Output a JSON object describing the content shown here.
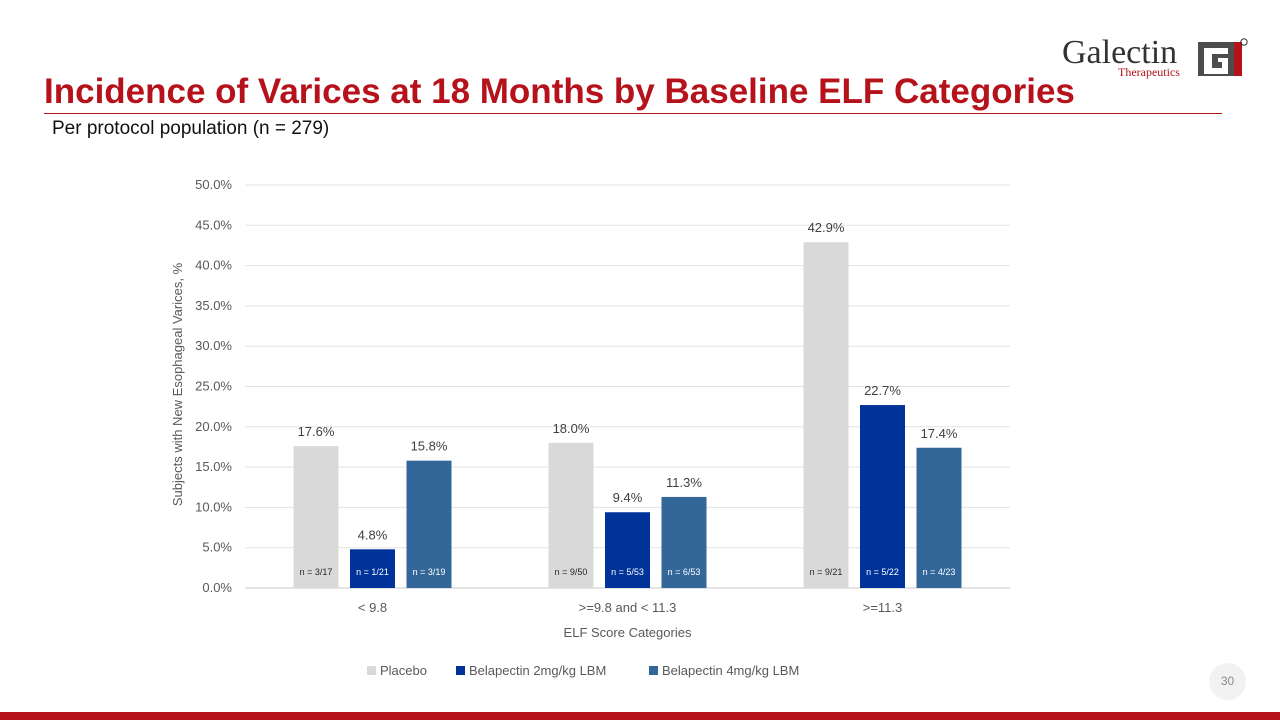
{
  "brand": {
    "name": "Galectin",
    "sub": "Therapeutics",
    "mark": "GT",
    "registered": "®",
    "color": "#b5121b"
  },
  "slide": {
    "title": "Incidence of Varices at 18 Months by Baseline ELF Categories",
    "subtitle": "Per protocol population (n = 279)",
    "page_number": "30"
  },
  "chart_data": {
    "type": "bar",
    "xlabel": "ELF Score Categories",
    "ylabel": "Subjects with New Esophageal Varices, %",
    "ylim": [
      0,
      50
    ],
    "yticks": [
      0,
      5,
      10,
      15,
      20,
      25,
      30,
      35,
      40,
      45,
      50
    ],
    "ytick_labels": [
      "0.0%",
      "5.0%",
      "10.0%",
      "15.0%",
      "20.0%",
      "25.0%",
      "30.0%",
      "35.0%",
      "40.0%",
      "45.0%",
      "50.0%"
    ],
    "grid": true,
    "legend_position": "bottom",
    "categories": [
      "< 9.8",
      ">=9.8 and < 11.3",
      ">=11.3"
    ],
    "series": [
      {
        "name": "Placebo",
        "color": "#d9d9d9",
        "values": [
          17.6,
          18.0,
          42.9
        ],
        "labels": [
          "17.6%",
          "18.0%",
          "42.9%"
        ],
        "n_labels": [
          "n = 3/17",
          "n = 9/50",
          "n = 9/21"
        ]
      },
      {
        "name": "Belapectin 2mg/kg LBM",
        "color": "#003399",
        "values": [
          4.8,
          9.4,
          22.7
        ],
        "labels": [
          "4.8%",
          "9.4%",
          "22.7%"
        ],
        "n_labels": [
          "n = 1/21",
          "n = 5/53",
          "n = 5/22"
        ]
      },
      {
        "name": "Belapectin 4mg/kg LBM",
        "color": "#336699",
        "values": [
          15.8,
          11.3,
          17.4
        ],
        "labels": [
          "15.8%",
          "11.3%",
          "17.4%"
        ],
        "n_labels": [
          "n = 3/19",
          "n = 6/53",
          "n = 4/23"
        ]
      }
    ]
  }
}
